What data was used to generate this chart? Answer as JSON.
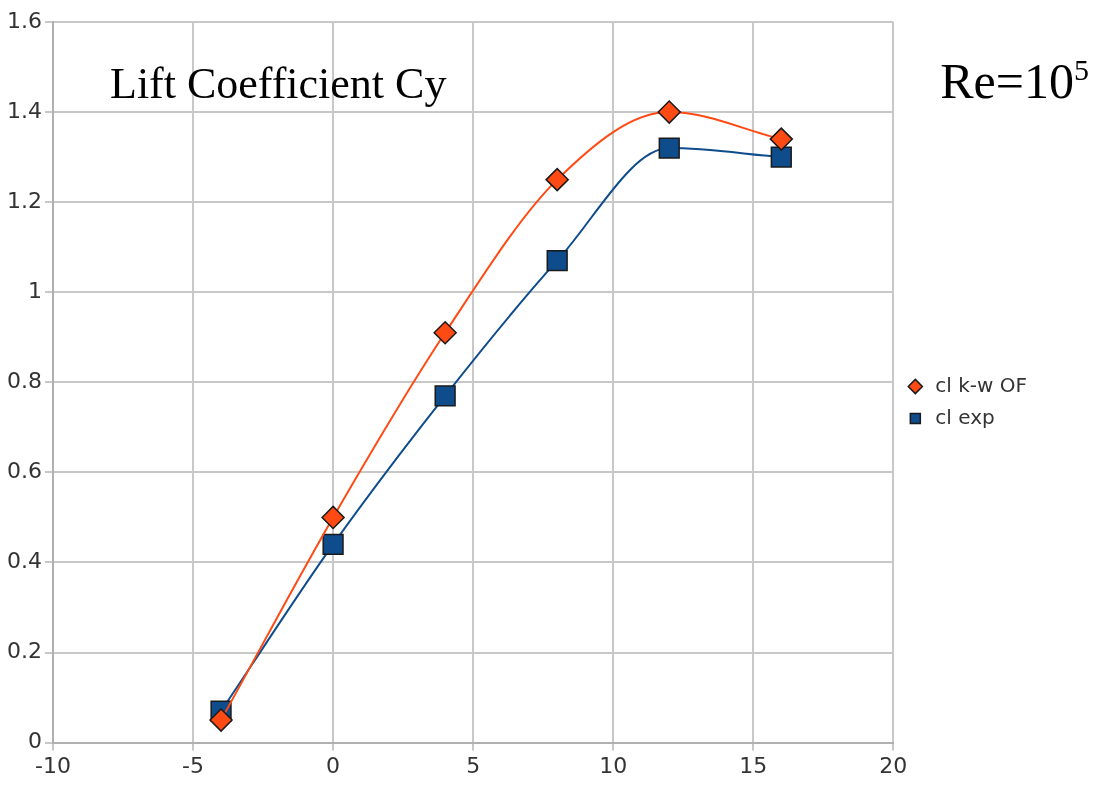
{
  "chart_data": {
    "type": "line",
    "title": "Lift Coefficient Cy",
    "annotations": [
      "Re=10$^{5}$"
    ],
    "series": [
      {
        "name": "cl exp",
        "color": "#0e4c8c",
        "marker": "square",
        "x": [
          -4,
          0,
          4,
          8,
          12,
          16
        ],
        "values": [
          0.07,
          0.44,
          0.77,
          1.07,
          1.32,
          1.3
        ]
      },
      {
        "name": "cl k-w OF",
        "color": "#ff4a14",
        "marker": "diamond",
        "x": [
          -4,
          0,
          4,
          8,
          12,
          16
        ],
        "values": [
          0.05,
          0.5,
          0.91,
          1.25,
          1.4,
          1.34
        ]
      }
    ],
    "xlim": [
      -10,
      20
    ],
    "xticks": [
      -10,
      -5,
      0,
      5,
      10,
      15,
      20
    ],
    "ylim": [
      0,
      1.6
    ],
    "yticks": [
      0,
      0.2,
      0.4,
      0.6,
      0.8,
      1,
      1.2,
      1.4,
      1.6
    ],
    "grid": true,
    "legend": "right"
  }
}
